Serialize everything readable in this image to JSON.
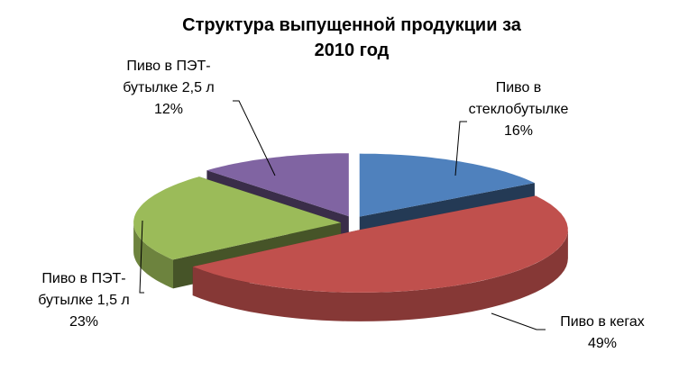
{
  "chart_data": {
    "type": "pie",
    "title": "Структура выпущенной продукции за 2010 год",
    "categories": [
      "Пиво в стеклобутылке",
      "Пиво в кегах",
      "Пиво в ПЭТ-бутылке 1,5 л",
      "Пиво в ПЭТ-бутылке 2,5 л"
    ],
    "values": [
      16,
      49,
      23,
      12
    ],
    "value_labels": [
      "16%",
      "49%",
      "23%",
      "12%"
    ],
    "colors": [
      "#4f81bd",
      "#c0504d",
      "#9bbb59",
      "#8064a2"
    ]
  }
}
